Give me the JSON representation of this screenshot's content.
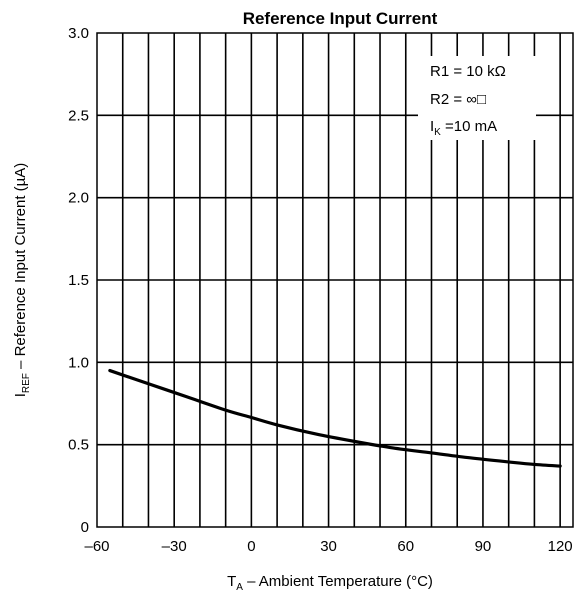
{
  "chart_data": {
    "type": "line",
    "title": "Reference Input Current",
    "xlabel": {
      "main": "T",
      "sub": "A",
      "rest": " – Ambient Temperature (°C)"
    },
    "ylabel": {
      "main": "I",
      "sub": "REF",
      "rest": " – Reference Input Current (µA)"
    },
    "xlim": [
      -60,
      125
    ],
    "ylim": [
      0,
      3.0
    ],
    "x_ticks": [
      -60,
      -30,
      0,
      30,
      60,
      90,
      120
    ],
    "x_tick_labels": [
      "–60",
      "–30",
      "0",
      "30",
      "60",
      "90",
      "120"
    ],
    "y_ticks": [
      0,
      0.5,
      1.0,
      1.5,
      2.0,
      2.5,
      3.0
    ],
    "y_tick_labels": [
      "0",
      "0.5",
      "1.0",
      "1.5",
      "2.0",
      "2.5",
      "3.0"
    ],
    "x_minor_step": 10,
    "y_minor_step": 0.5,
    "grid": true,
    "series": [
      {
        "x": [
          -55,
          -40,
          -25,
          -10,
          0,
          10,
          25,
          40,
          55,
          70,
          85,
          100,
          110,
          120
        ],
        "y": [
          0.95,
          0.87,
          0.79,
          0.71,
          0.665,
          0.62,
          0.565,
          0.52,
          0.48,
          0.45,
          0.42,
          0.395,
          0.38,
          0.37
        ]
      }
    ],
    "annotation": {
      "lines": [
        {
          "text": "R1 = 10 kΩ"
        },
        {
          "text": "R2 = ∞□"
        },
        {
          "main": "I",
          "sub": "K",
          "rest": " =10 mA"
        }
      ],
      "placement": "top-right"
    }
  }
}
